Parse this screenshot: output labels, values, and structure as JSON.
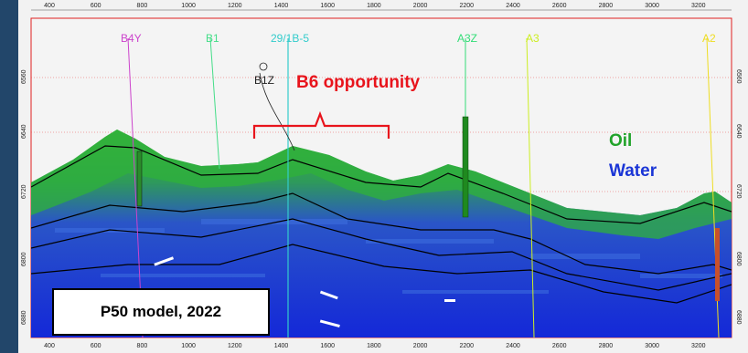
{
  "x_axis": {
    "ticks": [
      "400",
      "600",
      "800",
      "1000",
      "1200",
      "1400",
      "1600",
      "1800",
      "2000",
      "2200",
      "2400",
      "2600",
      "2800",
      "3000",
      "3200"
    ]
  },
  "depth_axis": {
    "ticks": [
      "6560",
      "6640",
      "6720",
      "6800",
      "6880"
    ]
  },
  "wells": [
    {
      "name": "B4Y",
      "color": "#cc44cc",
      "x_trace": 2
    },
    {
      "name": "B1",
      "color": "#44dd88",
      "x_trace": 3
    },
    {
      "name": "29/1B-5",
      "color": "#33cccc",
      "x_trace": 4
    },
    {
      "name": "B1Z",
      "color": "#222222",
      "x_trace": 5
    },
    {
      "name": "A3Z",
      "color": "#33dd77",
      "x_trace": 6
    },
    {
      "name": "A3",
      "color": "#ccee22",
      "x_trace": 7
    },
    {
      "name": "A2",
      "color": "#eedd22",
      "x_trace": 8
    }
  ],
  "annotations": {
    "opportunity": "B6 opportunity",
    "legend_oil": "Oil",
    "legend_water": "Water",
    "model_label": "P50 model, 2022"
  },
  "colors": {
    "oil": "#22a32a",
    "water": "#1a35d6",
    "annotation": "#e8141c",
    "frame_bg": "#22466a"
  }
}
